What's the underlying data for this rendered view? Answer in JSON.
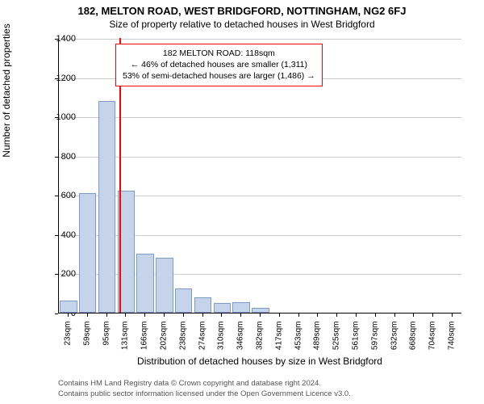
{
  "title": "182, MELTON ROAD, WEST BRIDGFORD, NOTTINGHAM, NG2 6FJ",
  "subtitle": "Size of property relative to detached houses in West Bridgford",
  "chart": {
    "type": "histogram",
    "background_color": "#ffffff",
    "grid_color": "#cccccc",
    "bar_fill": "#c5d4ea",
    "bar_stroke": "#7a9cc6",
    "marker_color": "#ff0000",
    "marker_x_value": 118,
    "ylim": [
      0,
      1400
    ],
    "y_ticks": [
      0,
      200,
      400,
      600,
      800,
      1000,
      1200,
      1400
    ],
    "ylabel": "Number of detached properties",
    "xlabel": "Distribution of detached houses by size in West Bridgford",
    "x_categories": [
      "23sqm",
      "59sqm",
      "95sqm",
      "131sqm",
      "166sqm",
      "202sqm",
      "238sqm",
      "274sqm",
      "310sqm",
      "346sqm",
      "382sqm",
      "417sqm",
      "453sqm",
      "489sqm",
      "525sqm",
      "561sqm",
      "597sqm",
      "632sqm",
      "668sqm",
      "704sqm",
      "740sqm"
    ],
    "values": [
      60,
      610,
      1080,
      620,
      300,
      280,
      125,
      80,
      50,
      55,
      25,
      0,
      0,
      0,
      0,
      0,
      0,
      0,
      0,
      0,
      0
    ],
    "bar_width_ratio": 0.9,
    "label_fontsize": 12,
    "tick_fontsize": 10
  },
  "callout": {
    "line1": "182 MELTON ROAD: 118sqm",
    "line2": "← 46% of detached houses are smaller (1,311)",
    "line3": "53% of semi-detached houses are larger (1,486) →"
  },
  "footer": {
    "line1": "Contains HM Land Registry data © Crown copyright and database right 2024.",
    "line2": "Contains public sector information licensed under the Open Government Licence v3.0."
  }
}
